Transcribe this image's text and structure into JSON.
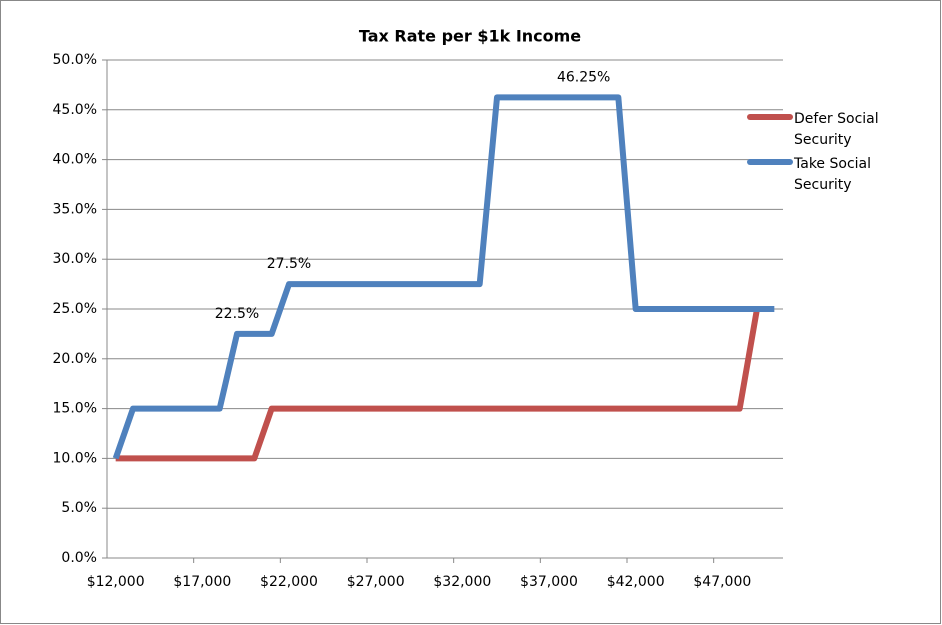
{
  "chart_data": {
    "type": "line",
    "title": "Tax Rate per $1k Income",
    "categories": [
      "$12,000",
      null,
      null,
      null,
      null,
      "$17,000",
      null,
      null,
      null,
      null,
      "$22,000",
      null,
      null,
      null,
      null,
      "$27,000",
      null,
      null,
      null,
      null,
      "$32,000",
      null,
      null,
      null,
      null,
      "$37,000",
      null,
      null,
      null,
      null,
      "$42,000",
      null,
      null,
      null,
      null,
      "$47,000",
      null,
      null,
      null
    ],
    "series": [
      {
        "name": "Defer Social Security",
        "color": "#c0504d",
        "values": [
          10,
          10,
          10,
          10,
          10,
          10,
          10,
          10,
          10,
          15,
          15,
          15,
          15,
          15,
          15,
          15,
          15,
          15,
          15,
          15,
          15,
          15,
          15,
          15,
          15,
          15,
          15,
          15,
          15,
          15,
          15,
          15,
          15,
          15,
          15,
          15,
          15,
          25,
          null
        ]
      },
      {
        "name": "Take Social Security",
        "color": "#4f81bd",
        "values": [
          10,
          15,
          15,
          15,
          15,
          15,
          15,
          22.5,
          22.5,
          22.5,
          27.5,
          27.5,
          27.5,
          27.5,
          27.5,
          27.5,
          27.5,
          27.5,
          27.5,
          27.5,
          27.5,
          27.5,
          46.25,
          46.25,
          46.25,
          46.25,
          46.25,
          46.25,
          46.25,
          46.25,
          25,
          25,
          25,
          25,
          25,
          25,
          25,
          25,
          25
        ],
        "value_labels": [
          null,
          null,
          null,
          null,
          null,
          null,
          null,
          "22.5%",
          null,
          null,
          "27.5%",
          null,
          null,
          null,
          null,
          null,
          null,
          null,
          null,
          null,
          null,
          null,
          null,
          null,
          null,
          null,
          null,
          "46.25%",
          null,
          null,
          null,
          null,
          null,
          null,
          null,
          null,
          null,
          null,
          null
        ]
      }
    ],
    "ylim": [
      0,
      50
    ],
    "yticks": [
      {
        "value": 0,
        "label": "0.0%"
      },
      {
        "value": 5,
        "label": "5.0%"
      },
      {
        "value": 10,
        "label": "10.0%"
      },
      {
        "value": 15,
        "label": "15.0%"
      },
      {
        "value": 20,
        "label": "20.0%"
      },
      {
        "value": 25,
        "label": "25.0%"
      },
      {
        "value": 30,
        "label": "30.0%"
      },
      {
        "value": 35,
        "label": "35.0%"
      },
      {
        "value": 40,
        "label": "40.0%"
      },
      {
        "value": 45,
        "label": "45.0%"
      },
      {
        "value": 50,
        "label": "50.0%"
      }
    ],
    "grid": true,
    "legend": "right"
  }
}
